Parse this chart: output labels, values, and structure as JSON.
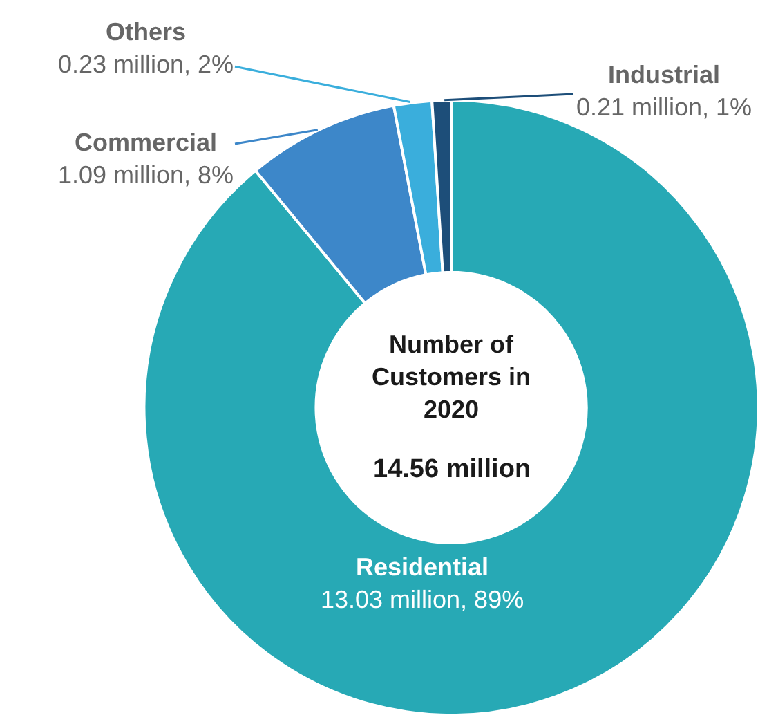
{
  "chart_data": {
    "type": "donut",
    "title": "Number of Customers in 2020",
    "subtitle": "14.56 million",
    "categories": [
      "Residential",
      "Commercial",
      "Others",
      "Industrial"
    ],
    "values": [
      89,
      8,
      2,
      1
    ],
    "colors": [
      "#27a9b5",
      "#3d87c9",
      "#3aaedc",
      "#1d4e79"
    ],
    "value_labels": [
      "13.03 million, 89%",
      "1.09 million, 8%",
      "0.23 million, 2%",
      "0.21 million, 1%"
    ],
    "legend": false
  }
}
